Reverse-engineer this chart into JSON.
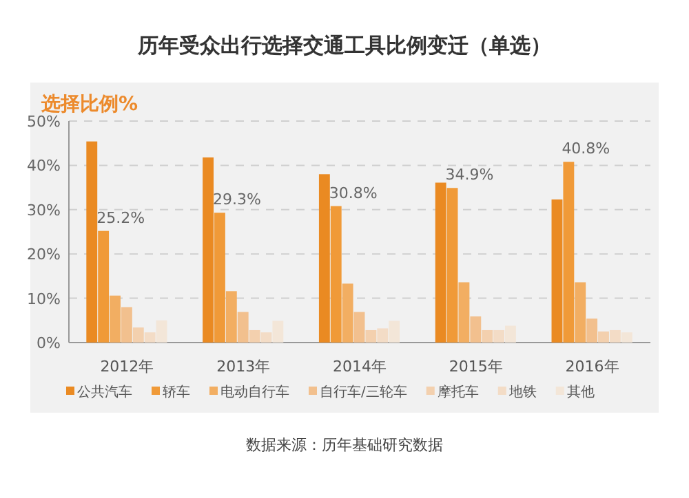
{
  "chart_data": {
    "type": "bar",
    "title": "历年受众出行选择交通工具比例变迁（单选）",
    "ylabel": "选择比例%",
    "categories": [
      "2012年",
      "2013年",
      "2014年",
      "2015年",
      "2016年"
    ],
    "series": [
      {
        "name": "公共汽车",
        "color": "#ea8a22",
        "values": [
          45.4,
          41.8,
          38.0,
          36.1,
          32.3
        ]
      },
      {
        "name": "轿车",
        "color": "#f09a38",
        "values": [
          25.2,
          29.3,
          30.8,
          34.9,
          40.8
        ],
        "value_labels": [
          "25.2%",
          "29.3%",
          "30.8%",
          "34.9%",
          "40.8%"
        ]
      },
      {
        "name": "电动自行车",
        "color": "#f2ae62",
        "values": [
          10.6,
          11.6,
          13.3,
          13.6,
          13.6
        ]
      },
      {
        "name": "自行车/三轮车",
        "color": "#f2c08e",
        "values": [
          8.0,
          6.9,
          6.9,
          5.9,
          5.4
        ]
      },
      {
        "name": "摩托车",
        "color": "#f3d0ae",
        "values": [
          3.4,
          2.8,
          2.8,
          2.8,
          2.5
        ]
      },
      {
        "name": "地铁",
        "color": "#f3dcc6",
        "values": [
          2.3,
          2.3,
          3.2,
          2.8,
          2.8
        ]
      },
      {
        "name": "其他",
        "color": "#f3e6d8",
        "values": [
          5.0,
          4.9,
          4.9,
          3.8,
          2.3
        ]
      }
    ],
    "ylim": [
      0,
      50
    ],
    "yticks": [
      {
        "value": 0,
        "label": "0%"
      },
      {
        "value": 10,
        "label": "10%"
      },
      {
        "value": 20,
        "label": "20%"
      },
      {
        "value": 30,
        "label": "30%"
      },
      {
        "value": 40,
        "label": "40%"
      },
      {
        "value": 50,
        "label": "50%"
      }
    ],
    "grid": "y",
    "legend": "bottom",
    "annotations": [
      "数据来源：历年基础研究数据"
    ]
  }
}
